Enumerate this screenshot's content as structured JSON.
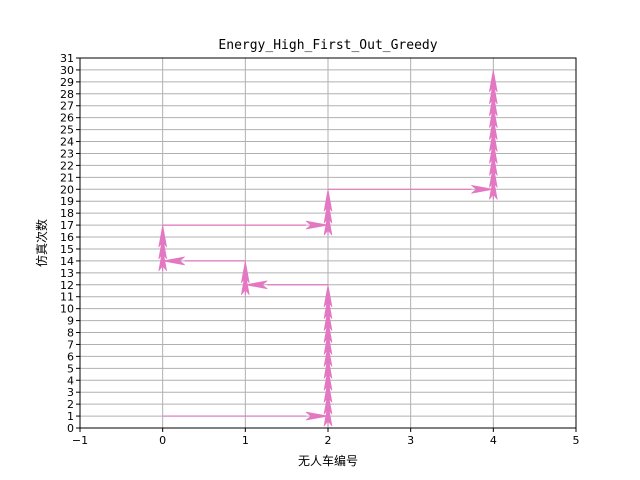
{
  "chart_data": {
    "type": "arrow-path",
    "title": "Energy_High_First_Out_Greedy",
    "xlabel": "无人车编号",
    "ylabel": "仿真次数",
    "xlim": [
      -1,
      5
    ],
    "ylim": [
      0,
      31
    ],
    "x_ticks": [
      "−1",
      "0",
      "1",
      "2",
      "3",
      "4",
      "5"
    ],
    "y_ticks": [
      "0",
      "1",
      "2",
      "3",
      "4",
      "5",
      "6",
      "7",
      "8",
      "9",
      "10",
      "11",
      "12",
      "13",
      "14",
      "15",
      "16",
      "17",
      "18",
      "19",
      "20",
      "21",
      "22",
      "23",
      "24",
      "25",
      "26",
      "27",
      "28",
      "29",
      "30",
      "31"
    ],
    "grid": true,
    "arrow_color": "#e377c2",
    "series": [
      {
        "points": [
          {
            "x": 0,
            "y": 1
          },
          {
            "x": 2,
            "y": 1
          },
          {
            "x": 2,
            "y": 2
          },
          {
            "x": 2,
            "y": 3
          },
          {
            "x": 2,
            "y": 4
          },
          {
            "x": 2,
            "y": 5
          },
          {
            "x": 2,
            "y": 6
          },
          {
            "x": 2,
            "y": 7
          },
          {
            "x": 2,
            "y": 8
          },
          {
            "x": 2,
            "y": 9
          },
          {
            "x": 2,
            "y": 10
          },
          {
            "x": 2,
            "y": 11
          },
          {
            "x": 2,
            "y": 12
          },
          {
            "x": 1,
            "y": 12
          },
          {
            "x": 1,
            "y": 13
          },
          {
            "x": 1,
            "y": 14
          },
          {
            "x": 0,
            "y": 14
          },
          {
            "x": 0,
            "y": 15
          },
          {
            "x": 0,
            "y": 16
          },
          {
            "x": 0,
            "y": 17
          },
          {
            "x": 2,
            "y": 17
          },
          {
            "x": 2,
            "y": 18
          },
          {
            "x": 2,
            "y": 19
          },
          {
            "x": 2,
            "y": 20
          },
          {
            "x": 4,
            "y": 20
          },
          {
            "x": 4,
            "y": 21
          },
          {
            "x": 4,
            "y": 22
          },
          {
            "x": 4,
            "y": 23
          },
          {
            "x": 4,
            "y": 24
          },
          {
            "x": 4,
            "y": 25
          },
          {
            "x": 4,
            "y": 26
          },
          {
            "x": 4,
            "y": 27
          },
          {
            "x": 4,
            "y": 28
          },
          {
            "x": 4,
            "y": 29
          },
          {
            "x": 4,
            "y": 30
          }
        ]
      }
    ]
  }
}
